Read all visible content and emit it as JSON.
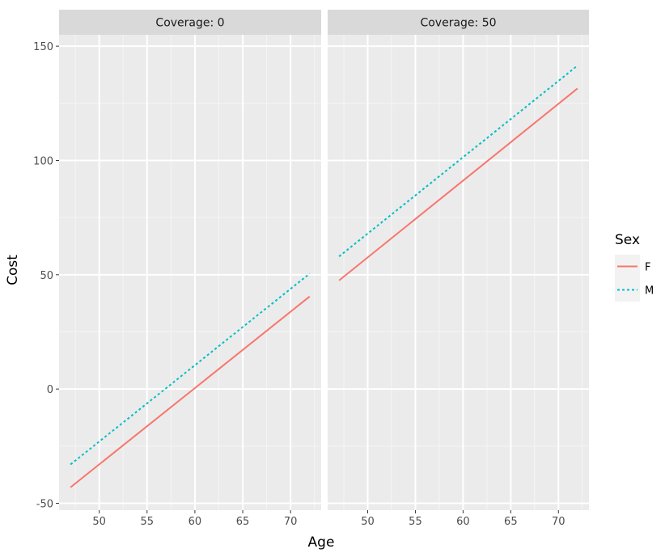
{
  "chart_data": {
    "type": "line",
    "xlabel": "Age",
    "ylabel": "Cost",
    "xlim": [
      45.8,
      73.2
    ],
    "ylim": [
      -53,
      155
    ],
    "x_ticks": [
      50,
      55,
      60,
      65,
      70
    ],
    "y_ticks": [
      -50,
      0,
      50,
      100,
      150
    ],
    "grid": true,
    "legend": {
      "title": "Sex",
      "position": "right",
      "entries": [
        {
          "label": "F",
          "color": "#F8766D",
          "dash": "solid"
        },
        {
          "label": "M",
          "color": "#00BFC4",
          "dash": "dotted"
        }
      ]
    },
    "panels": [
      {
        "strip": "Coverage: 0",
        "series": [
          {
            "name": "F",
            "x": [
              47,
              72
            ],
            "y": [
              -43,
              40.5
            ]
          },
          {
            "name": "M",
            "x": [
              47,
              72
            ],
            "y": [
              -33,
              50.5
            ]
          }
        ]
      },
      {
        "strip": "Coverage: 50",
        "series": [
          {
            "name": "F",
            "x": [
              47,
              72
            ],
            "y": [
              47.5,
              131.5
            ]
          },
          {
            "name": "M",
            "x": [
              47,
              72
            ],
            "y": [
              58,
              141.5
            ]
          }
        ]
      }
    ]
  }
}
